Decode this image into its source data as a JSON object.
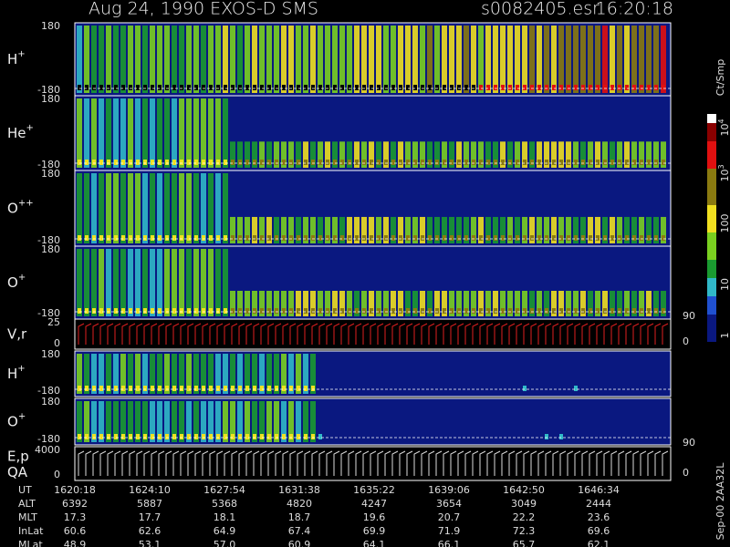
{
  "header": {
    "title": "Aug 24, 1990   EXOS-D SMS",
    "file": "s0082405.esr",
    "time": "16:20:18"
  },
  "panels": [
    {
      "label": "H",
      "sup": "+",
      "top": "180",
      "bottom": "-180"
    },
    {
      "label": "He",
      "sup": "+",
      "top": "180",
      "bottom": "-180"
    },
    {
      "label": "O",
      "sup": "++",
      "top": "180",
      "bottom": "-180"
    },
    {
      "label": "O",
      "sup": "+",
      "top": "180",
      "bottom": "-180"
    },
    {
      "label": "V,r",
      "top": "25",
      "bottom": "0",
      "right_top": "90",
      "right_bottom": "0"
    },
    {
      "label": "H",
      "sup": "+",
      "top": "180",
      "bottom": "-180"
    },
    {
      "label": "O",
      "sup": "+",
      "top": "180",
      "bottom": "-180"
    },
    {
      "label": "E,p",
      "label2": "QA",
      "top": "4000",
      "bottom": "0",
      "right_top": "90",
      "right_bottom": "0"
    }
  ],
  "colorbar": {
    "unit": "Ct/Smp",
    "labels": [
      {
        "base": "1"
      },
      {
        "base": "10"
      },
      {
        "base": "100"
      },
      {
        "base": "10",
        "sup": "3"
      },
      {
        "base": "10",
        "sup": "4"
      }
    ]
  },
  "table": {
    "rows": [
      {
        "label": "UT",
        "values": [
          "1620:18",
          "1624:10",
          "1627:54",
          "1631:38",
          "1635:22",
          "1639:06",
          "1642:50",
          "1646:34"
        ]
      },
      {
        "label": "ALT",
        "values": [
          "6392",
          "5887",
          "5368",
          "4820",
          "4247",
          "3654",
          "3049",
          "2444"
        ]
      },
      {
        "label": "MLT",
        "values": [
          "17.3",
          "17.7",
          "18.1",
          "18.7",
          "19.6",
          "20.7",
          "22.2",
          "23.6"
        ]
      },
      {
        "label": "InLat",
        "values": [
          "60.6",
          "62.6",
          "64.9",
          "67.4",
          "69.9",
          "71.9",
          "72.3",
          "69.6"
        ]
      },
      {
        "label": "MLat",
        "values": [
          "48.9",
          "53.1",
          "57.0",
          "60.9",
          "64.1",
          "66.1",
          "65.7",
          "62.1"
        ]
      }
    ]
  },
  "footer_note": "Sep-00 2AA32L"
}
